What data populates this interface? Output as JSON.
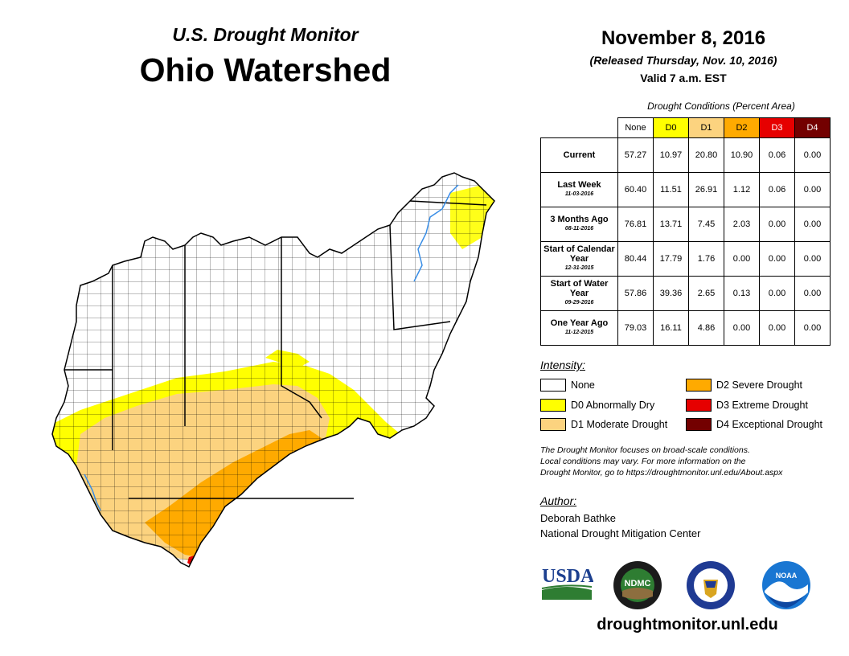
{
  "header": {
    "subtitle": "U.S. Drought Monitor",
    "title": "Ohio Watershed",
    "date": "November 8, 2016",
    "released": "(Released Thursday, Nov. 10, 2016)",
    "valid": "Valid 7 a.m. EST"
  },
  "table": {
    "caption": "Drought Conditions (Percent Area)",
    "columns": [
      "None",
      "D0",
      "D1",
      "D2",
      "D3",
      "D4"
    ],
    "rows": [
      {
        "label": "Current",
        "sub": "",
        "values": [
          "57.27",
          "10.97",
          "20.80",
          "10.90",
          "0.06",
          "0.00"
        ]
      },
      {
        "label": "Last Week",
        "sub": "11-03-2016",
        "values": [
          "60.40",
          "11.51",
          "26.91",
          "1.12",
          "0.06",
          "0.00"
        ]
      },
      {
        "label": "3 Months Ago",
        "sub": "08-11-2016",
        "values": [
          "76.81",
          "13.71",
          "7.45",
          "2.03",
          "0.00",
          "0.00"
        ]
      },
      {
        "label": "Start of Calendar Year",
        "sub": "12-31-2015",
        "values": [
          "80.44",
          "17.79",
          "1.76",
          "0.00",
          "0.00",
          "0.00"
        ]
      },
      {
        "label": "Start of Water Year",
        "sub": "09-29-2016",
        "values": [
          "57.86",
          "39.36",
          "2.65",
          "0.13",
          "0.00",
          "0.00"
        ]
      },
      {
        "label": "One Year Ago",
        "sub": "11-12-2015",
        "values": [
          "79.03",
          "16.11",
          "4.86",
          "0.00",
          "0.00",
          "0.00"
        ]
      }
    ]
  },
  "legend": {
    "title": "Intensity:",
    "items": [
      {
        "label": "None",
        "color": "#ffffff"
      },
      {
        "label": "D0 Abnormally Dry",
        "color": "#ffff00"
      },
      {
        "label": "D1 Moderate Drought",
        "color": "#fcd37f"
      },
      {
        "label": "D2 Severe Drought",
        "color": "#ffaa00"
      },
      {
        "label": "D3 Extreme Drought",
        "color": "#e60000"
      },
      {
        "label": "D4 Exceptional Drought",
        "color": "#730000"
      }
    ]
  },
  "note": {
    "line1": "The Drought Monitor focuses on broad-scale conditions.",
    "line2": "Local conditions may vary. For more information on the",
    "line3": "Drought Monitor, go to https://droughtmonitor.unl.edu/About.aspx"
  },
  "author": {
    "title": "Author:",
    "name": "Deborah Bathke",
    "org": "National Drought Mitigation Center"
  },
  "logos": {
    "usda": "USDA",
    "ndmc": "NDMC",
    "noaa": "NOAA"
  },
  "footer": {
    "url": "droughtmonitor.unl.edu"
  },
  "colors": {
    "none": "#ffffff",
    "d0": "#ffff00",
    "d1": "#fcd37f",
    "d2": "#ffaa00",
    "d3": "#e60000",
    "d4": "#730000",
    "river": "#3a8ee6"
  }
}
